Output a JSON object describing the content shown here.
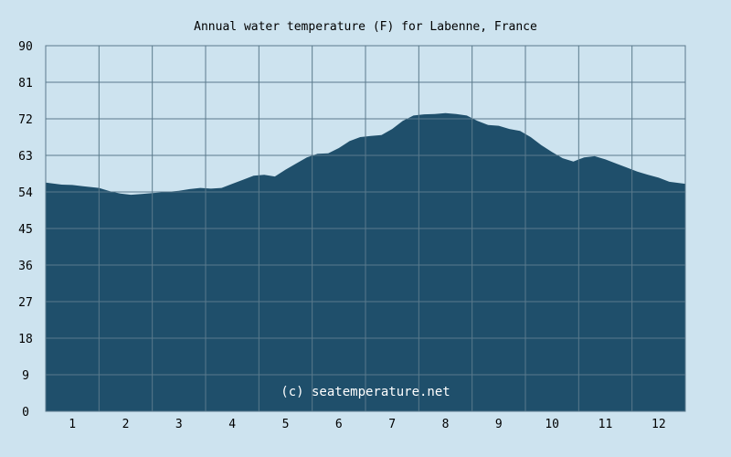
{
  "chart_data": {
    "type": "area",
    "title": "Annual water temperature (F) for Labenne, France",
    "xlabel": "",
    "ylabel": "",
    "ylim": [
      0,
      90
    ],
    "yticks": [
      0,
      9,
      18,
      27,
      36,
      45,
      54,
      63,
      72,
      81,
      90
    ],
    "categories": [
      "1",
      "2",
      "3",
      "4",
      "5",
      "6",
      "7",
      "8",
      "9",
      "10",
      "11",
      "12"
    ],
    "xlim": [
      0.5,
      12.5
    ],
    "grid": true,
    "series": [
      {
        "x": [
          0.5,
          0.8,
          1.0,
          1.2,
          1.5,
          1.7,
          1.9,
          2.1,
          2.3,
          2.5,
          2.7,
          3.0,
          3.2,
          3.4,
          3.6,
          3.8,
          4.0,
          4.2,
          4.4,
          4.6,
          4.8,
          5.0,
          5.2,
          5.4,
          5.6,
          5.8,
          6.0,
          6.2,
          6.4,
          6.6,
          6.8,
          7.0,
          7.2,
          7.4,
          7.6,
          7.8,
          8.0,
          8.2,
          8.4,
          8.6,
          8.8,
          9.0,
          9.2,
          9.4,
          9.6,
          9.8,
          10.0,
          10.2,
          10.4,
          10.6,
          10.8,
          11.0,
          11.2,
          11.4,
          11.6,
          11.8,
          12.0,
          12.2,
          12.5
        ],
        "values": [
          56.3,
          55.8,
          55.7,
          55.4,
          55.0,
          54.2,
          53.6,
          53.3,
          53.5,
          53.7,
          53.9,
          54.3,
          54.7,
          55.0,
          54.8,
          55.0,
          56.0,
          57.0,
          58.0,
          58.2,
          57.8,
          59.5,
          61.0,
          62.5,
          63.4,
          63.5,
          64.8,
          66.5,
          67.5,
          67.8,
          68.0,
          69.5,
          71.5,
          72.8,
          73.1,
          73.2,
          73.4,
          73.2,
          72.8,
          71.5,
          70.5,
          70.3,
          69.5,
          69.0,
          67.5,
          65.5,
          63.8,
          62.3,
          61.5,
          62.5,
          62.8,
          62.0,
          61.0,
          60.0,
          59.0,
          58.2,
          57.5,
          56.5,
          56.0
        ]
      }
    ],
    "colors": {
      "background": "#cde3ef",
      "fill": "#1f4f6b",
      "grid": "#5a7a8c"
    }
  },
  "credit": "(c) seatemperature.net"
}
